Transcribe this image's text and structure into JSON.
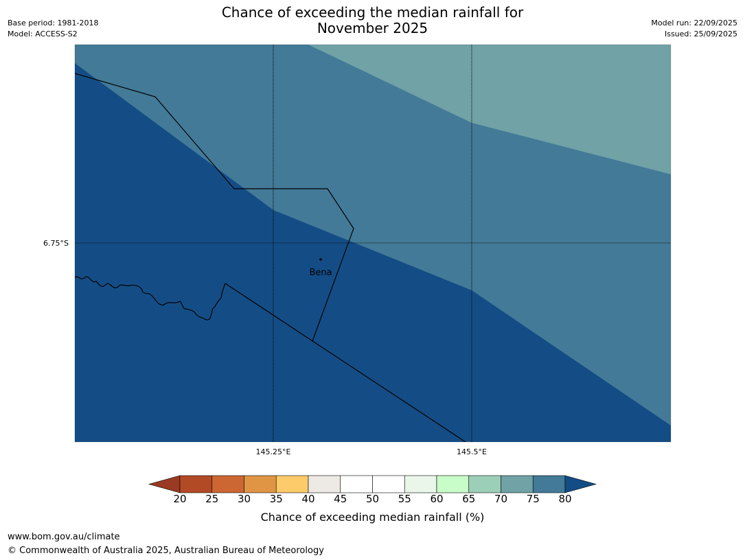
{
  "header": {
    "title_line1": "Chance of exceeding the median rainfall for",
    "title_line2": "November 2025",
    "base_period": "Base period: 1981-2018",
    "model": "Model: ACCESS-S2",
    "model_run": "Model run: 22/09/2025",
    "issued": "Issued: 25/09/2025"
  },
  "map": {
    "lat_label": "6.75°S",
    "lon_labels": [
      "145.25°E",
      "145.5°E"
    ],
    "place": {
      "name": "Bena"
    },
    "colors": {
      "band_80_plus": "#144d85",
      "band_75_80": "#437a98",
      "band_70_75": "#70a2a6"
    }
  },
  "colorbar": {
    "title": "Chance of exceeding median rainfall (%)",
    "ticks": [
      "20",
      "25",
      "30",
      "35",
      "40",
      "45",
      "50",
      "55",
      "60",
      "65",
      "70",
      "75",
      "80"
    ],
    "under_color": "#9a3a22",
    "over_color": "#144d85",
    "segment_colors": [
      "#b34a26",
      "#cc6633",
      "#e09545",
      "#fecb6a",
      "#ede9e4",
      "#ffffff",
      "#ffffff",
      "#eaf6ea",
      "#c8fcc8",
      "#9ccfb7",
      "#70a2a6",
      "#437a98"
    ]
  },
  "footer": {
    "url": "www.bom.gov.au/climate",
    "copyright": "© Commonwealth of Australia 2025, Australian Bureau of Meteorology"
  }
}
